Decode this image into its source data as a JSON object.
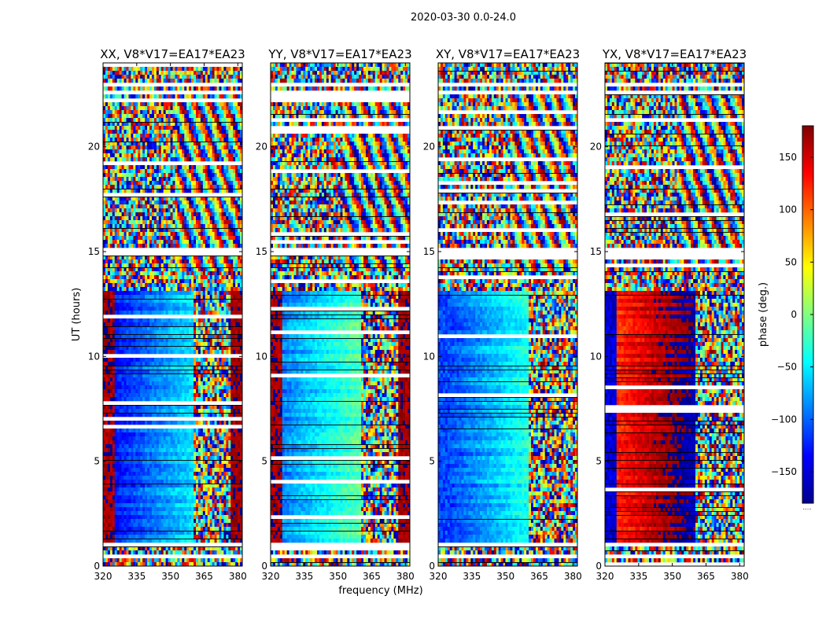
{
  "figure": {
    "suptitle": "2020-03-30 0.0-24.0",
    "ylabel": "UT (hours)",
    "xlabel": "frequency (MHz)"
  },
  "chart_data": {
    "type": "heatmap",
    "title": "2020-03-30 0.0-24.0",
    "xlabel": "frequency (MHz)",
    "ylabel": "UT (hours)",
    "xlim": [
      320,
      382
    ],
    "ylim": [
      0,
      24
    ],
    "xticks": [
      320,
      335,
      350,
      365,
      380
    ],
    "yticks": [
      0,
      5,
      10,
      15,
      20
    ],
    "panels": [
      {
        "title": "XX, V8*V17=EA17*EA23",
        "corr": "XX",
        "structured_until_mhz": 360,
        "base_phase_deg": -130,
        "edge_phase_deg": 170
      },
      {
        "title": "YY, V8*V17=EA17*EA23",
        "corr": "YY",
        "structured_until_mhz": 360,
        "base_phase_deg": -90,
        "edge_phase_deg": 170
      },
      {
        "title": "XY, V8*V17=EA17*EA23",
        "corr": "XY",
        "structured_until_mhz": 360,
        "base_phase_deg": -110,
        "edge_phase_deg": -110
      },
      {
        "title": "YX, V8*V17=EA17*EA23",
        "corr": "YX",
        "structured_until_mhz": 360,
        "base_phase_deg": 120,
        "edge_phase_deg": -150
      }
    ],
    "structured_time_range_hours": [
      1.2,
      13.2
    ],
    "flagged_rows_hours": [
      0.5,
      1.0,
      1.1,
      15.0,
      22.6,
      23.0
    ],
    "colorbar": {
      "label": "phase (deg.)",
      "range": [
        -180,
        180
      ],
      "ticks": [
        150,
        100,
        50,
        0,
        -50,
        -100,
        -150
      ],
      "ticklabels": [
        "150",
        "100",
        "50",
        "0",
        "−50",
        "−100",
        "−150"
      ],
      "colormap": "jet",
      "footnote": "....."
    }
  }
}
